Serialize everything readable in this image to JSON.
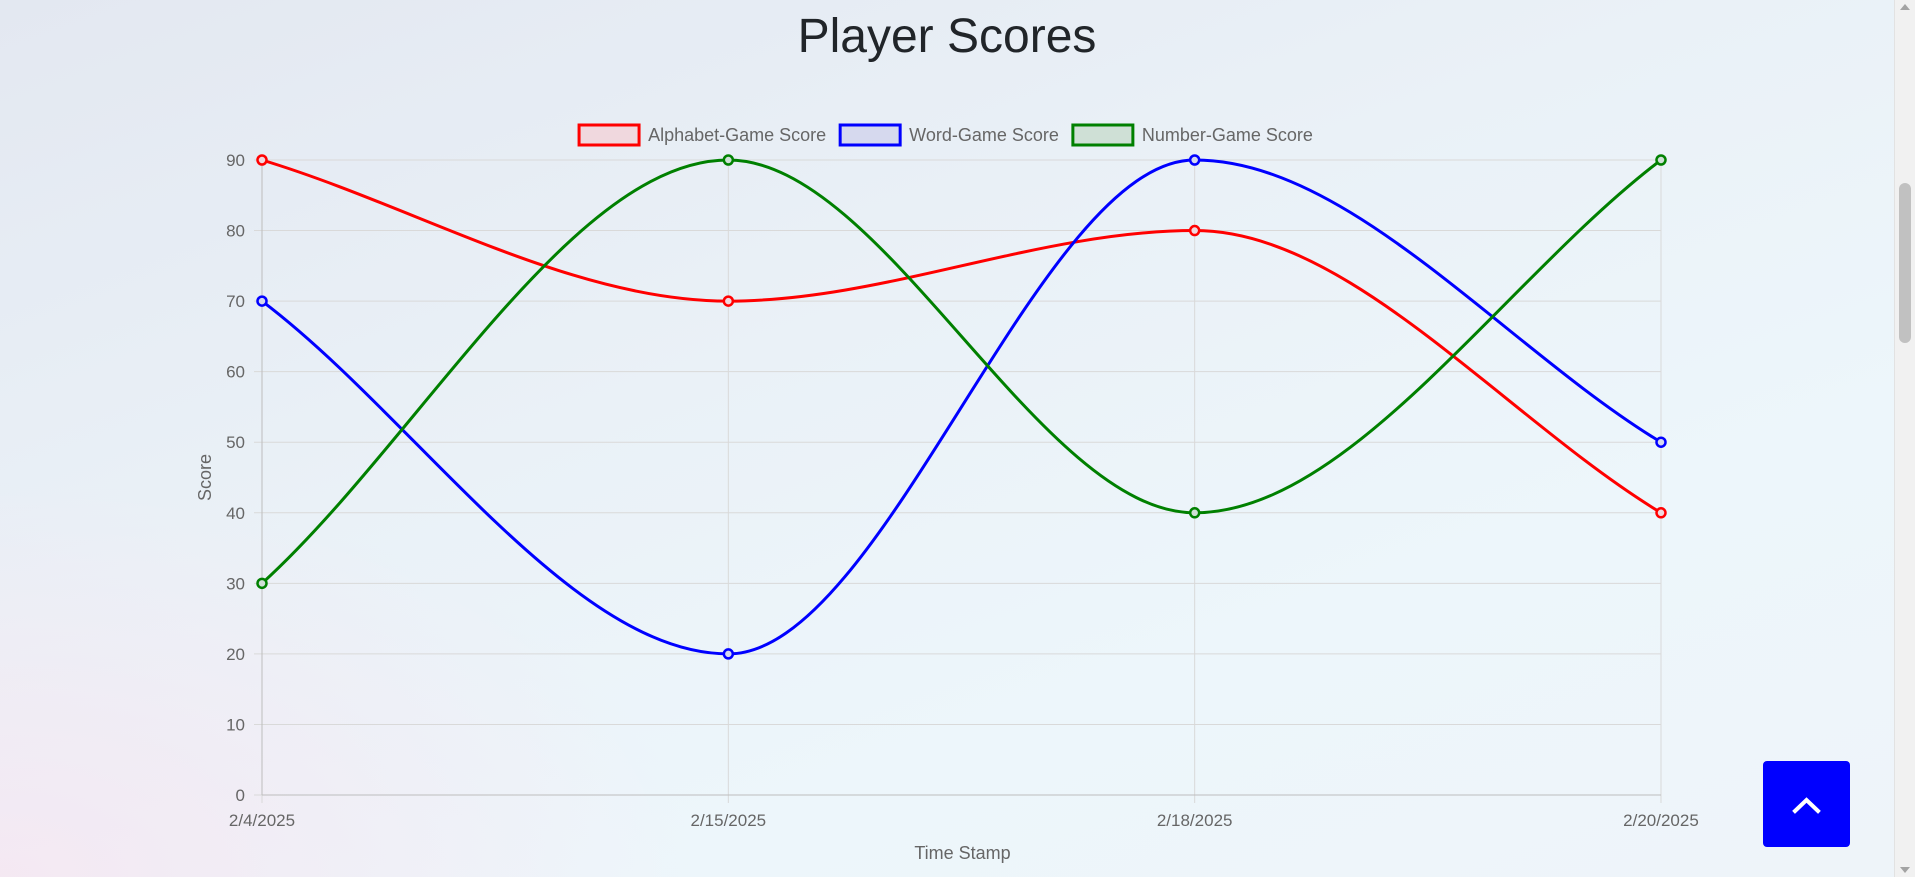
{
  "page": {
    "title": "Player Scores"
  },
  "chart_data": {
    "type": "line",
    "title": "",
    "xlabel": "Time Stamp",
    "ylabel": "Score",
    "categories": [
      "2/4/2025",
      "2/15/2025",
      "2/18/2025",
      "2/20/2025"
    ],
    "ylim": [
      0,
      90
    ],
    "yticks": [
      0,
      10,
      20,
      30,
      40,
      50,
      60,
      70,
      80,
      90
    ],
    "grid": true,
    "legend_position": "top",
    "smooth": true,
    "series": [
      {
        "name": "Alphabet-Game Score",
        "values": [
          90,
          70,
          80,
          40
        ],
        "color": "#ff0000",
        "fill": "#f0d8de"
      },
      {
        "name": "Word-Game Score",
        "values": [
          70,
          20,
          90,
          50
        ],
        "color": "#0000ff",
        "fill": "#d6d9ee"
      },
      {
        "name": "Number-Game Score",
        "values": [
          30,
          90,
          40,
          90
        ],
        "color": "#008000",
        "fill": "#cfe0d6"
      }
    ]
  },
  "controls": {
    "back_to_top_icon": "chevron-up-icon",
    "back_to_top_color": "#0000ff"
  }
}
